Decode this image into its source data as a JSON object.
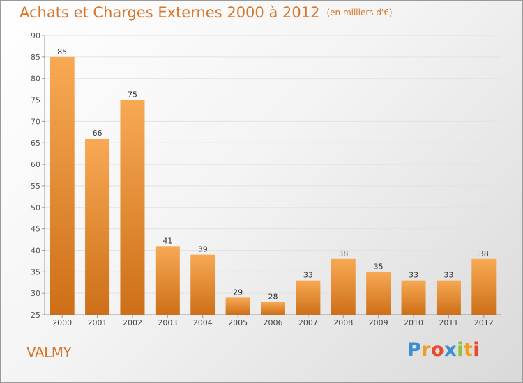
{
  "title": "Achats et Charges Externes 2000 à 2012",
  "subtitle": "(en milliers d'€)",
  "place_label": "VALMY",
  "logo": {
    "text": "Proxiti",
    "letters": [
      {
        "ch": "P",
        "color": "#3a8fd0"
      },
      {
        "ch": "r",
        "color": "#f0a020"
      },
      {
        "ch": "o",
        "color": "#e9482c"
      },
      {
        "ch": "x",
        "color": "#3a8fd0"
      },
      {
        "ch": "i",
        "color": "#8bc53f"
      },
      {
        "ch": "t",
        "color": "#f0a020"
      },
      {
        "ch": "i",
        "color": "#e9482c"
      }
    ]
  },
  "colors": {
    "accent": "#d8762b",
    "bar_light": "#f8a954",
    "bar_dark": "#cd6f18",
    "grid": "#e2e2e2"
  },
  "chart_data": {
    "type": "bar",
    "categories": [
      "2000",
      "2001",
      "2002",
      "2003",
      "2004",
      "2005",
      "2006",
      "2007",
      "2008",
      "2009",
      "2010",
      "2011",
      "2012"
    ],
    "values": [
      85,
      66,
      75,
      41,
      39,
      29,
      28,
      33,
      38,
      35,
      33,
      33,
      38
    ],
    "title": "Achats et Charges Externes 2000 à 2012",
    "subtitle": "(en milliers d'€)",
    "ylim": [
      25,
      90
    ],
    "yticks": [
      25,
      30,
      35,
      40,
      45,
      50,
      55,
      60,
      65,
      70,
      75,
      80,
      85,
      90
    ],
    "grid": true,
    "data_labels": true
  }
}
